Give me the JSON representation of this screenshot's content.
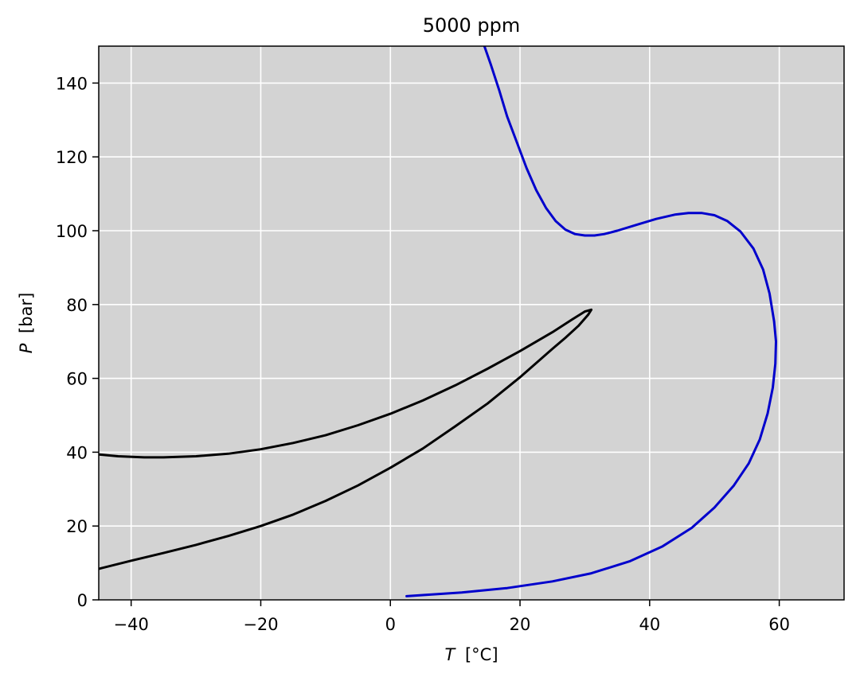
{
  "chart_data": {
    "type": "line",
    "title": "5000 ppm",
    "xlabel": {
      "symbol": "T",
      "unit": "[°C]"
    },
    "ylabel": {
      "symbol": "P",
      "unit": "[bar]"
    },
    "xlim": [
      -45,
      70
    ],
    "ylim": [
      0,
      150
    ],
    "xticks": [
      -40,
      -20,
      0,
      20,
      40,
      60
    ],
    "xtick_labels": [
      "−40",
      "−20",
      "0",
      "20",
      "40",
      "60"
    ],
    "yticks": [
      0,
      20,
      40,
      60,
      80,
      100,
      120,
      140
    ],
    "ytick_labels": [
      "0",
      "20",
      "40",
      "60",
      "80",
      "100",
      "120",
      "140"
    ],
    "grid": true,
    "background_color": "#d3d3d3",
    "grid_color": "#ffffff",
    "series": [
      {
        "color": "#000000",
        "points": [
          [
            -45,
            39.4
          ],
          [
            -42,
            38.9
          ],
          [
            -38,
            38.6
          ],
          [
            -35,
            38.6
          ],
          [
            -30,
            38.9
          ],
          [
            -25,
            39.6
          ],
          [
            -20,
            40.8
          ],
          [
            -15,
            42.5
          ],
          [
            -10,
            44.6
          ],
          [
            -5,
            47.3
          ],
          [
            0,
            50.4
          ],
          [
            5,
            54.0
          ],
          [
            10,
            58.1
          ],
          [
            15,
            62.6
          ],
          [
            20,
            67.4
          ],
          [
            25,
            72.5
          ],
          [
            28,
            75.9
          ],
          [
            30,
            78.1
          ],
          [
            31,
            78.6
          ],
          [
            30.5,
            77.2
          ],
          [
            29,
            74.2
          ],
          [
            27,
            71.0
          ],
          [
            25,
            68.0
          ],
          [
            20,
            60.3
          ],
          [
            15,
            53.2
          ],
          [
            10,
            47.0
          ],
          [
            5,
            41.0
          ],
          [
            0,
            35.8
          ],
          [
            -5,
            31.0
          ],
          [
            -10,
            26.8
          ],
          [
            -15,
            23.1
          ],
          [
            -20,
            20.0
          ],
          [
            -25,
            17.3
          ],
          [
            -30,
            14.9
          ],
          [
            -35,
            12.7
          ],
          [
            -40,
            10.6
          ],
          [
            -45,
            8.4
          ]
        ]
      },
      {
        "color": "#0000cc",
        "points": [
          [
            14.5,
            150
          ],
          [
            15.5,
            145
          ],
          [
            16.8,
            138
          ],
          [
            18,
            131
          ],
          [
            19.5,
            124
          ],
          [
            21,
            117
          ],
          [
            22.5,
            111
          ],
          [
            24,
            106.2
          ],
          [
            25.5,
            102.6
          ],
          [
            27,
            100.3
          ],
          [
            28.5,
            99.1
          ],
          [
            30,
            98.7
          ],
          [
            31.5,
            98.7
          ],
          [
            33,
            99.1
          ],
          [
            35,
            100.0
          ],
          [
            38,
            101.6
          ],
          [
            41,
            103.2
          ],
          [
            44,
            104.4
          ],
          [
            46,
            104.8
          ],
          [
            48,
            104.8
          ],
          [
            50,
            104.2
          ],
          [
            52,
            102.6
          ],
          [
            54,
            99.8
          ],
          [
            56,
            95.2
          ],
          [
            57.5,
            89.5
          ],
          [
            58.5,
            83.0
          ],
          [
            59.2,
            75.5
          ],
          [
            59.5,
            70.0
          ],
          [
            59.4,
            64.0
          ],
          [
            59.0,
            57.5
          ],
          [
            58.2,
            50.5
          ],
          [
            57.0,
            43.5
          ],
          [
            55.3,
            37.0
          ],
          [
            53.0,
            31.0
          ],
          [
            50.0,
            25.0
          ],
          [
            46.5,
            19.5
          ],
          [
            42.0,
            14.5
          ],
          [
            37.0,
            10.5
          ],
          [
            31.0,
            7.2
          ],
          [
            25.0,
            5.0
          ],
          [
            18.0,
            3.2
          ],
          [
            11.0,
            2.0
          ],
          [
            5.0,
            1.3
          ],
          [
            2.5,
            1.0
          ]
        ]
      }
    ]
  }
}
